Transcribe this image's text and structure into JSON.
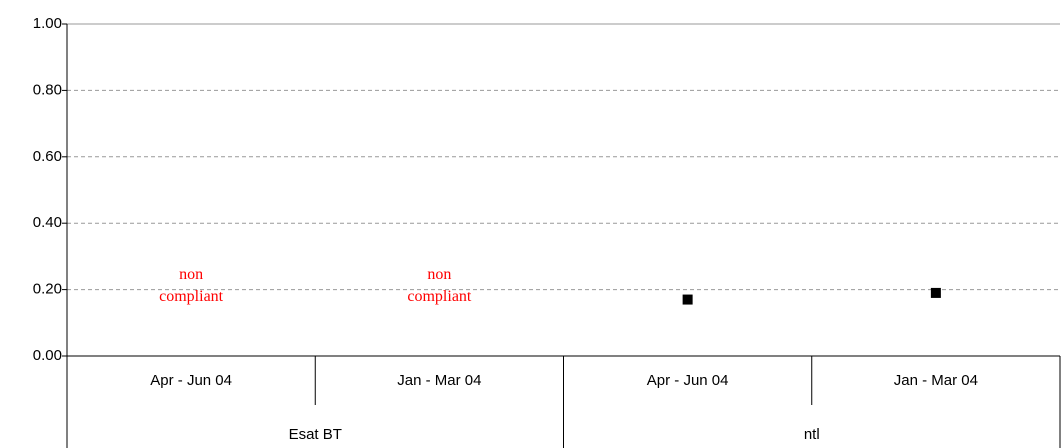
{
  "chart_data": {
    "type": "scatter",
    "categories": [
      "Apr - Jun 04",
      "Jan - Mar 04",
      "Apr - Jun 04",
      "Jan - Mar 04"
    ],
    "groups": [
      "Esat BT",
      "ntl"
    ],
    "series": [
      {
        "color": "#000000",
        "values": [
          null,
          null,
          0.17,
          0.19
        ]
      }
    ],
    "annotations": [
      "non compliant",
      "non compliant",
      null,
      null
    ],
    "annotation_color": "#ff0000",
    "ylim": [
      0,
      1
    ],
    "yticks": [
      {
        "value": 0,
        "label": "0.00"
      },
      {
        "value": 0.2,
        "label": "0.20"
      },
      {
        "value": 0.4,
        "label": "0.40"
      },
      {
        "value": 0.6,
        "label": "0.60"
      },
      {
        "value": 0.8,
        "label": "0.80"
      },
      {
        "value": 1,
        "label": "1.00"
      }
    ],
    "grid": true
  }
}
